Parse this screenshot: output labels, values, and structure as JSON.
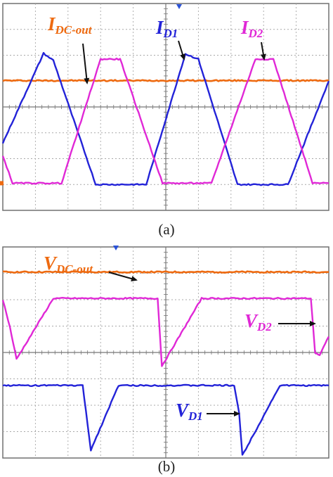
{
  "figure": {
    "colors": {
      "orange": "#ee6a10",
      "blue": "#2323d8",
      "magenta": "#e028d6",
      "grid": "#a8a8a8",
      "frame": "#707070",
      "axis": "#777777",
      "arrow": "#111111",
      "marker": "#2a52d8"
    }
  },
  "chart_data": [
    {
      "type": "line",
      "caption": "(a)",
      "x_divisions": 10,
      "y_divisions": 8,
      "grid": true,
      "ylim": [
        -4,
        4
      ],
      "xlim": [
        0,
        10
      ],
      "series": [
        {
          "name": "I_DC-out",
          "label": {
            "main": "I",
            "sub": "DC-out"
          },
          "color": "orange",
          "x": [
            0,
            10
          ],
          "y": [
            1.02,
            1.02
          ]
        },
        {
          "name": "I_D1",
          "label": {
            "main": "I",
            "sub": "D1"
          },
          "color": "blue",
          "x": [
            0,
            1.25,
            1.55,
            2.85,
            4.4,
            5.6,
            6.0,
            7.2,
            8.75,
            10
          ],
          "y": [
            -1.4,
            2.07,
            1.8,
            -3.0,
            -3.0,
            2.05,
            1.85,
            -3.0,
            -3.0,
            1.0
          ]
        },
        {
          "name": "I_D2",
          "label": {
            "main": "I",
            "sub": "D2"
          },
          "color": "magenta",
          "x": [
            0,
            0.3,
            1.8,
            3.0,
            3.6,
            4.9,
            6.4,
            7.75,
            8.3,
            9.5,
            10
          ],
          "y": [
            -1.9,
            -2.95,
            -2.95,
            1.85,
            1.85,
            -2.95,
            -2.95,
            1.85,
            1.85,
            -2.95,
            -2.95
          ]
        }
      ],
      "trigger_level": -2.95
    },
    {
      "type": "line",
      "caption": "(b)",
      "x_divisions": 10,
      "y_divisions": 8,
      "grid": true,
      "ylim": [
        -4,
        4
      ],
      "xlim": [
        0,
        10
      ],
      "series": [
        {
          "name": "V_DC-out",
          "label": {
            "main": "V",
            "sub": "DC-out"
          },
          "color": "orange",
          "x": [
            0,
            10
          ],
          "y": [
            3.05,
            3.05
          ]
        },
        {
          "name": "V_D2",
          "label": {
            "main": "V",
            "sub": "D2"
          },
          "color": "magenta",
          "x": [
            0,
            0.22,
            0.42,
            1.55,
            4.75,
            4.88,
            5.03,
            6.1,
            9.45,
            9.58,
            9.72,
            10
          ],
          "y": [
            2.0,
            0.95,
            -0.25,
            2.05,
            2.05,
            -0.5,
            -0.2,
            2.05,
            2.05,
            0.0,
            -0.1,
            0.6
          ]
        },
        {
          "name": "V_D1",
          "label": {
            "main": "V",
            "sub": "D1"
          },
          "color": "blue",
          "x": [
            0,
            2.45,
            2.7,
            3.55,
            7.1,
            7.25,
            7.35,
            8.5,
            10
          ],
          "y": [
            -1.25,
            -1.25,
            -3.7,
            -1.25,
            -1.25,
            -2.3,
            -3.9,
            -1.25,
            -1.25
          ]
        }
      ]
    }
  ]
}
